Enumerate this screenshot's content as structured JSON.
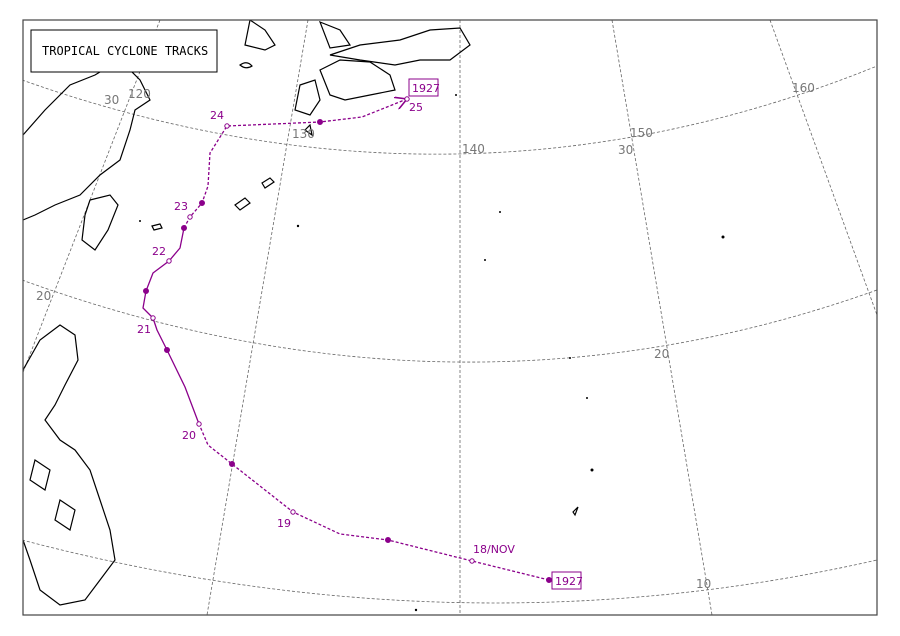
{
  "title": "TROPICAL CYCLONE TRACKS",
  "colors": {
    "track": "#8b008b",
    "coast": "#000000",
    "grid": "#666666"
  },
  "grid_labels": {
    "lat": [
      "30",
      "20",
      "10",
      "30",
      "20"
    ],
    "lon": [
      "120",
      "130",
      "140",
      "150",
      "160"
    ]
  },
  "track": {
    "id_start": "1927",
    "id_end": "1927",
    "day_labels": [
      "18/NOV",
      "19",
      "20",
      "21",
      "22",
      "23",
      "24",
      "25"
    ]
  }
}
